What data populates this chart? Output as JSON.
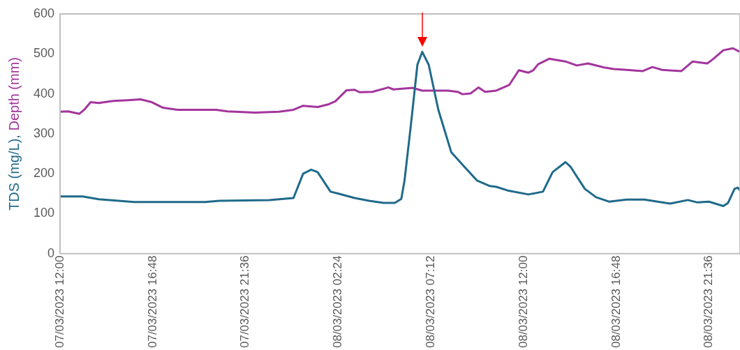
{
  "chart_data": {
    "type": "line",
    "ylabel": "TDS (mg/L), Depth (mm)",
    "xlim": [
      "2023-03-07T12:00",
      "2023-03-08T23:12"
    ],
    "xticks": [
      {
        "value": "2023-03-07T12:00",
        "label": "07/03/2023 12:00"
      },
      {
        "value": "2023-03-07T16:48",
        "label": "07/03/2023 16:48"
      },
      {
        "value": "2023-03-07T21:36",
        "label": "07/03/2023 21:36"
      },
      {
        "value": "2023-03-08T02:24",
        "label": "08/03/2023 02:24"
      },
      {
        "value": "2023-03-08T07:12",
        "label": "08/03/2023 07:12"
      },
      {
        "value": "2023-03-08T12:00",
        "label": "08/03/2023 12:00"
      },
      {
        "value": "2023-03-08T16:48",
        "label": "08/03/2023 16:48"
      },
      {
        "value": "2023-03-08T21:36",
        "label": "08/03/2023 21:36"
      }
    ],
    "ylim": [
      0,
      600
    ],
    "yticks": [
      0,
      100,
      200,
      300,
      400,
      500,
      600
    ],
    "grid": false,
    "legend": false,
    "marker": "none",
    "line_style": "solid",
    "series": [
      {
        "color": "#1f6a8a",
        "x": [
          "2023-03-07T12:00",
          "2023-03-07T13:10",
          "2023-03-07T14:00",
          "2023-03-07T15:50",
          "2023-03-07T19:30",
          "2023-03-07T20:15",
          "2023-03-07T22:50",
          "2023-03-08T00:05",
          "2023-03-08T00:35",
          "2023-03-08T01:00",
          "2023-03-08T01:20",
          "2023-03-08T02:00",
          "2023-03-08T02:25",
          "2023-03-08T03:15",
          "2023-03-08T04:00",
          "2023-03-08T04:45",
          "2023-03-08T05:20",
          "2023-03-08T05:40",
          "2023-03-08T05:50",
          "2023-03-08T06:10",
          "2023-03-08T06:30",
          "2023-03-08T06:45",
          "2023-03-08T07:05",
          "2023-03-08T07:35",
          "2023-03-08T08:15",
          "2023-03-08T08:55",
          "2023-03-08T09:35",
          "2023-03-08T10:15",
          "2023-03-08T10:35",
          "2023-03-08T11:10",
          "2023-03-08T12:15",
          "2023-03-08T13:00",
          "2023-03-08T13:30",
          "2023-03-08T14:10",
          "2023-03-08T14:25",
          "2023-03-08T15:10",
          "2023-03-08T15:45",
          "2023-03-08T16:25",
          "2023-03-08T17:20",
          "2023-03-08T18:15",
          "2023-03-08T19:10",
          "2023-03-08T19:35",
          "2023-03-08T20:30",
          "2023-03-08T21:00",
          "2023-03-08T21:35",
          "2023-03-08T22:20",
          "2023-03-08T22:35",
          "2023-03-08T22:55",
          "2023-03-08T23:05",
          "2023-03-08T23:12"
        ],
        "values": [
          143,
          143,
          136,
          129,
          129,
          132,
          134,
          139,
          200,
          210,
          204,
          155,
          150,
          139,
          132,
          127,
          127,
          137,
          183,
          324,
          473,
          505,
          473,
          360,
          254,
          218,
          183,
          169,
          167,
          158,
          148,
          155,
          204,
          229,
          218,
          162,
          141,
          130,
          135,
          135,
          128,
          125,
          134,
          128,
          130,
          119,
          127,
          162,
          165,
          158
        ]
      },
      {
        "color": "#a3359c",
        "x": [
          "2023-03-07T12:00",
          "2023-03-07T12:25",
          "2023-03-07T13:00",
          "2023-03-07T13:15",
          "2023-03-07T13:35",
          "2023-03-07T14:00",
          "2023-03-07T14:45",
          "2023-03-07T15:30",
          "2023-03-07T16:10",
          "2023-03-07T16:45",
          "2023-03-07T17:20",
          "2023-03-07T18:05",
          "2023-03-07T20:05",
          "2023-03-07T20:40",
          "2023-03-07T22:05",
          "2023-03-07T23:20",
          "2023-03-08T00:05",
          "2023-03-08T00:35",
          "2023-03-08T01:20",
          "2023-03-08T01:55",
          "2023-03-08T02:15",
          "2023-03-08T02:50",
          "2023-03-08T03:15",
          "2023-03-08T03:30",
          "2023-03-08T04:10",
          "2023-03-08T05:00",
          "2023-03-08T05:15",
          "2023-03-08T06:15",
          "2023-03-08T06:45",
          "2023-03-08T08:05",
          "2023-03-08T08:35",
          "2023-03-08T08:50",
          "2023-03-08T09:15",
          "2023-03-08T09:40",
          "2023-03-08T10:00",
          "2023-03-08T10:35",
          "2023-03-08T11:15",
          "2023-03-08T11:45",
          "2023-03-08T12:15",
          "2023-03-08T12:30",
          "2023-03-08T12:45",
          "2023-03-08T13:20",
          "2023-03-08T14:10",
          "2023-03-08T14:45",
          "2023-03-08T15:20",
          "2023-03-08T16:10",
          "2023-03-08T16:40",
          "2023-03-08T17:20",
          "2023-03-08T18:10",
          "2023-03-08T18:40",
          "2023-03-08T19:10",
          "2023-03-08T20:10",
          "2023-03-08T20:45",
          "2023-03-08T21:30",
          "2023-03-08T21:50",
          "2023-03-08T22:20",
          "2023-03-08T22:50",
          "2023-03-08T23:12"
        ],
        "values": [
          355,
          356,
          350,
          360,
          379,
          377,
          382,
          384,
          386,
          379,
          365,
          360,
          360,
          356,
          353,
          355,
          360,
          370,
          367,
          374,
          381,
          409,
          410,
          404,
          405,
          416,
          411,
          415,
          408,
          408,
          405,
          399,
          401,
          416,
          405,
          408,
          422,
          459,
          453,
          459,
          474,
          488,
          481,
          471,
          476,
          466,
          462,
          460,
          457,
          467,
          460,
          457,
          481,
          476,
          488,
          509,
          514,
          505
        ]
      }
    ]
  }
}
